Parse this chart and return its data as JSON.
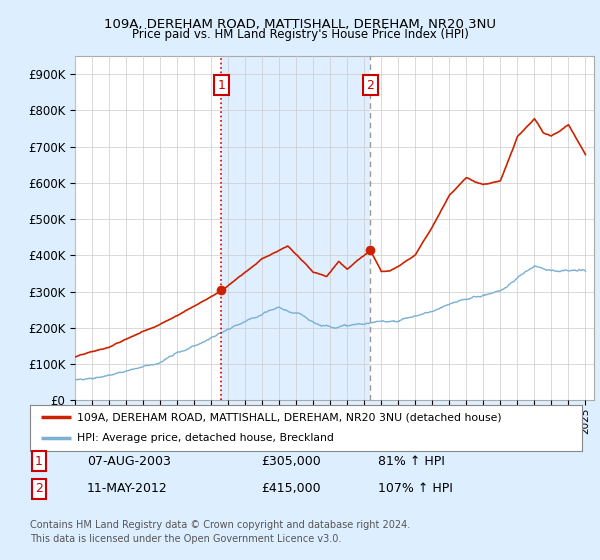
{
  "title_line1": "109A, DEREHAM ROAD, MATTISHALL, DEREHAM, NR20 3NU",
  "title_line2": "Price paid vs. HM Land Registry's House Price Index (HPI)",
  "ylim": [
    0,
    950000
  ],
  "xlim_start": 1995.2,
  "xlim_end": 2025.5,
  "purchase1_x": 2003.6,
  "purchase1_y": 305000,
  "purchase2_x": 2012.36,
  "purchase2_y": 415000,
  "vline1_color": "#cc0000",
  "vline2_color": "#999999",
  "red_line_color": "#cc2200",
  "blue_line_color": "#7ab0d4",
  "shade_color": "#ddeeff",
  "background_color": "#ddeeff",
  "plot_bg_color": "#ffffff",
  "box_color": "#cc0000",
  "legend_label_red": "109A, DEREHAM ROAD, MATTISHALL, DEREHAM, NR20 3NU (detached house)",
  "legend_label_blue": "HPI: Average price, detached house, Breckland",
  "table_row1": [
    "1",
    "07-AUG-2003",
    "£305,000",
    "81% ↑ HPI"
  ],
  "table_row2": [
    "2",
    "11-MAY-2012",
    "£415,000",
    "107% ↑ HPI"
  ],
  "footer": "Contains HM Land Registry data © Crown copyright and database right 2024.\nThis data is licensed under the Open Government Licence v3.0."
}
